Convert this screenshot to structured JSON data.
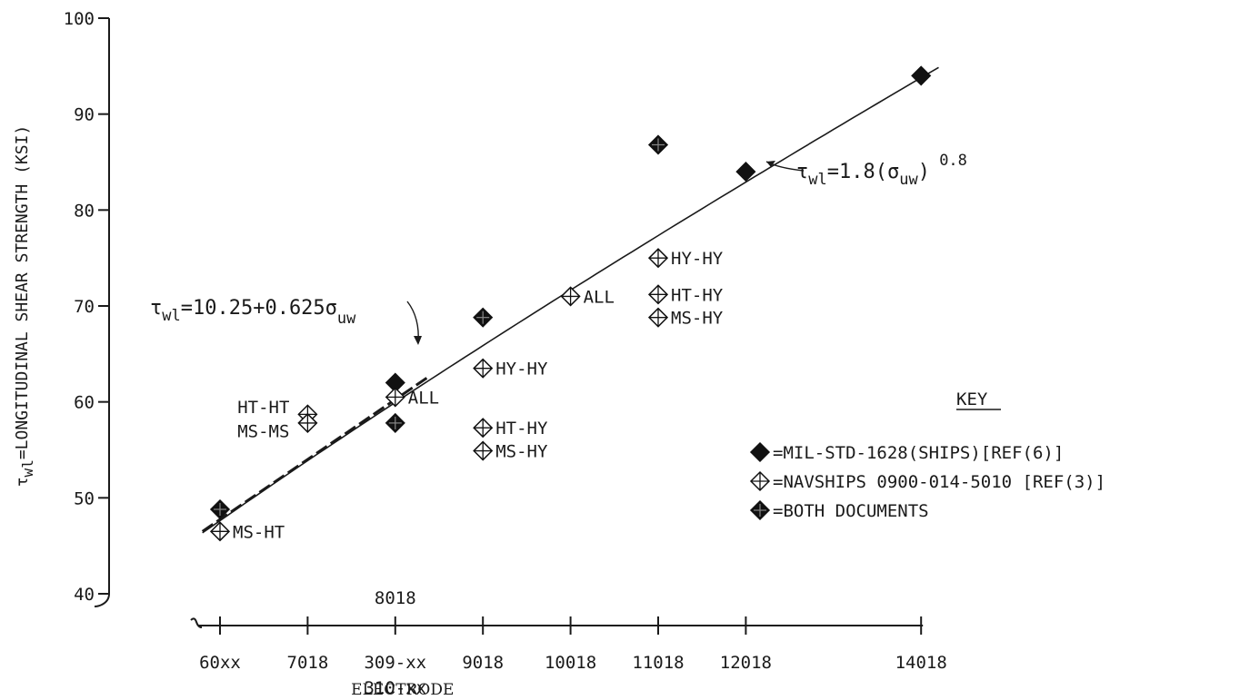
{
  "chart_data": {
    "type": "scatter",
    "xlabel": "ELECTRODE",
    "ylabel": {
      "prefix": "τ",
      "sub": "wl",
      "text": "=LONGITUDINAL SHEAR STRENGTH (KSI)"
    },
    "ylim": [
      40,
      100
    ],
    "yticks": [
      40,
      50,
      60,
      70,
      80,
      90,
      100
    ],
    "xlim": [
      55,
      145
    ],
    "xticks": [
      {
        "value": 60,
        "label": "60xx"
      },
      {
        "value": 70,
        "label": "7018"
      },
      {
        "value": 80,
        "label": "309-xx",
        "label_above": "8018",
        "label_below": "310-xx"
      },
      {
        "value": 90,
        "label": "9018"
      },
      {
        "value": 100,
        "label": "10018"
      },
      {
        "value": 110,
        "label": "11018"
      },
      {
        "value": 120,
        "label": "12018"
      },
      {
        "value": 140,
        "label": "14018"
      }
    ],
    "series": [
      {
        "name": "=MIL-STD-1628(SHIPS)[REF(6)]",
        "marker": "solid-diamond",
        "points": [
          {
            "x": 80,
            "y": 62
          },
          {
            "x": 120,
            "y": 84
          },
          {
            "x": 140,
            "y": 94
          }
        ]
      },
      {
        "name": "=NAVSHIPS 0900-014-5010 [REF(3)]",
        "marker": "crossed-diamond",
        "points": [
          {
            "x": 60,
            "y": 46.5,
            "label": "MS-HT"
          },
          {
            "x": 70,
            "y": 58.7,
            "label": "HT-HT"
          },
          {
            "x": 70,
            "y": 57.8,
            "label": "MS-MS"
          },
          {
            "x": 80,
            "y": 60.5,
            "label": "ALL"
          },
          {
            "x": 90,
            "y": 63.5,
            "label": "HY-HY"
          },
          {
            "x": 90,
            "y": 57.3,
            "label": "HT-HY"
          },
          {
            "x": 90,
            "y": 54.9,
            "label": "MS-HY"
          },
          {
            "x": 100,
            "y": 71,
            "label": "ALL"
          },
          {
            "x": 110,
            "y": 75,
            "label": "HY-HY"
          },
          {
            "x": 110,
            "y": 71.2,
            "label": "HT-HY"
          },
          {
            "x": 110,
            "y": 68.8,
            "label": "MS-HY"
          }
        ]
      },
      {
        "name": "=BOTH DOCUMENTS",
        "marker": "half-diamond",
        "points": [
          {
            "x": 60,
            "y": 48.8
          },
          {
            "x": 80,
            "y": 57.8
          },
          {
            "x": 90,
            "y": 68.8
          },
          {
            "x": 110,
            "y": 86.8
          }
        ]
      }
    ],
    "lines": [
      {
        "name": "power-fit",
        "style": "solid",
        "equation": {
          "lhs": "τ",
          "sub": "wl",
          "rhs": "=1.8(σ",
          "sub2": "uw",
          "close": ")",
          "exp": "0.8"
        }
      },
      {
        "name": "linear-fit",
        "style": "dashed",
        "equation": {
          "lhs": "τ",
          "sub": "wl",
          "rhs": "=10.25+0.625σ",
          "sub2": "uw"
        }
      }
    ],
    "legend": {
      "title": "KEY",
      "position": "right"
    }
  }
}
